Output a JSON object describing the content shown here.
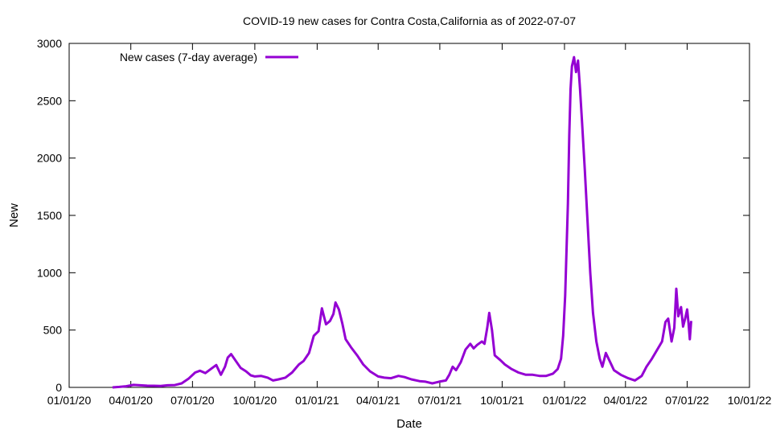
{
  "chart_data": {
    "type": "line",
    "title": "COVID-19 new cases for Contra Costa,California as of 2022-07-07",
    "xlabel": "Date",
    "ylabel": "New",
    "xlim": [
      "2020-01-01",
      "2022-10-01"
    ],
    "ylim": [
      0,
      3000
    ],
    "x_ticks": [
      "01/01/20",
      "04/01/20",
      "07/01/20",
      "10/01/20",
      "01/01/21",
      "04/01/21",
      "07/01/21",
      "10/01/21",
      "01/01/22",
      "04/01/22",
      "07/01/22",
      "10/01/22"
    ],
    "y_ticks": [
      "0",
      "500",
      "1000",
      "1500",
      "2000",
      "2500",
      "3000"
    ],
    "grid": false,
    "legend": {
      "position": "top-left"
    },
    "colors": {
      "series": "#9400d3"
    },
    "series": [
      {
        "name": "New cases (7-day average)",
        "points": [
          [
            "2020-03-05",
            0
          ],
          [
            "2020-03-15",
            4
          ],
          [
            "2020-03-25",
            10
          ],
          [
            "2020-04-05",
            22
          ],
          [
            "2020-04-15",
            18
          ],
          [
            "2020-04-25",
            15
          ],
          [
            "2020-05-05",
            14
          ],
          [
            "2020-05-15",
            12
          ],
          [
            "2020-05-25",
            18
          ],
          [
            "2020-06-05",
            20
          ],
          [
            "2020-06-15",
            35
          ],
          [
            "2020-06-25",
            75
          ],
          [
            "2020-07-05",
            130
          ],
          [
            "2020-07-12",
            145
          ],
          [
            "2020-07-20",
            125
          ],
          [
            "2020-07-28",
            160
          ],
          [
            "2020-08-05",
            195
          ],
          [
            "2020-08-12",
            110
          ],
          [
            "2020-08-18",
            180
          ],
          [
            "2020-08-22",
            260
          ],
          [
            "2020-08-27",
            290
          ],
          [
            "2020-09-03",
            230
          ],
          [
            "2020-09-10",
            170
          ],
          [
            "2020-09-18",
            140
          ],
          [
            "2020-09-25",
            105
          ],
          [
            "2020-10-01",
            95
          ],
          [
            "2020-10-10",
            100
          ],
          [
            "2020-10-20",
            85
          ],
          [
            "2020-10-28",
            60
          ],
          [
            "2020-11-05",
            70
          ],
          [
            "2020-11-15",
            85
          ],
          [
            "2020-11-25",
            130
          ],
          [
            "2020-12-05",
            200
          ],
          [
            "2020-12-12",
            230
          ],
          [
            "2020-12-20",
            300
          ],
          [
            "2020-12-27",
            450
          ],
          [
            "2021-01-03",
            490
          ],
          [
            "2021-01-08",
            690
          ],
          [
            "2021-01-11",
            620
          ],
          [
            "2021-01-14",
            550
          ],
          [
            "2021-01-20",
            580
          ],
          [
            "2021-01-25",
            640
          ],
          [
            "2021-01-28",
            740
          ],
          [
            "2021-02-02",
            680
          ],
          [
            "2021-02-07",
            560
          ],
          [
            "2021-02-12",
            420
          ],
          [
            "2021-02-20",
            350
          ],
          [
            "2021-03-01",
            280
          ],
          [
            "2021-03-10",
            200
          ],
          [
            "2021-03-20",
            140
          ],
          [
            "2021-04-01",
            95
          ],
          [
            "2021-04-10",
            85
          ],
          [
            "2021-04-20",
            80
          ],
          [
            "2021-05-01",
            100
          ],
          [
            "2021-05-10",
            90
          ],
          [
            "2021-05-20",
            70
          ],
          [
            "2021-06-01",
            55
          ],
          [
            "2021-06-10",
            50
          ],
          [
            "2021-06-20",
            35
          ],
          [
            "2021-06-30",
            50
          ],
          [
            "2021-07-10",
            60
          ],
          [
            "2021-07-15",
            110
          ],
          [
            "2021-07-20",
            180
          ],
          [
            "2021-07-25",
            150
          ],
          [
            "2021-08-01",
            220
          ],
          [
            "2021-08-08",
            330
          ],
          [
            "2021-08-15",
            380
          ],
          [
            "2021-08-20",
            340
          ],
          [
            "2021-08-25",
            370
          ],
          [
            "2021-09-01",
            400
          ],
          [
            "2021-09-05",
            380
          ],
          [
            "2021-09-09",
            520
          ],
          [
            "2021-09-12",
            650
          ],
          [
            "2021-09-16",
            500
          ],
          [
            "2021-09-20",
            280
          ],
          [
            "2021-09-28",
            240
          ],
          [
            "2021-10-05",
            200
          ],
          [
            "2021-10-15",
            160
          ],
          [
            "2021-10-25",
            130
          ],
          [
            "2021-11-05",
            110
          ],
          [
            "2021-11-15",
            110
          ],
          [
            "2021-11-25",
            100
          ],
          [
            "2021-12-05",
            100
          ],
          [
            "2021-12-15",
            120
          ],
          [
            "2021-12-22",
            160
          ],
          [
            "2021-12-27",
            250
          ],
          [
            "2021-12-30",
            450
          ],
          [
            "2022-01-02",
            800
          ],
          [
            "2022-01-04",
            1200
          ],
          [
            "2022-01-06",
            1600
          ],
          [
            "2022-01-08",
            2200
          ],
          [
            "2022-01-10",
            2600
          ],
          [
            "2022-01-12",
            2800
          ],
          [
            "2022-01-15",
            2880
          ],
          [
            "2022-01-18",
            2750
          ],
          [
            "2022-01-21",
            2850
          ],
          [
            "2022-01-24",
            2600
          ],
          [
            "2022-01-27",
            2300
          ],
          [
            "2022-01-31",
            1900
          ],
          [
            "2022-02-04",
            1450
          ],
          [
            "2022-02-08",
            1000
          ],
          [
            "2022-02-12",
            650
          ],
          [
            "2022-02-17",
            400
          ],
          [
            "2022-02-22",
            250
          ],
          [
            "2022-02-26",
            180
          ],
          [
            "2022-03-03",
            300
          ],
          [
            "2022-03-07",
            250
          ],
          [
            "2022-03-15",
            150
          ],
          [
            "2022-03-25",
            110
          ],
          [
            "2022-04-05",
            80
          ],
          [
            "2022-04-15",
            60
          ],
          [
            "2022-04-25",
            100
          ],
          [
            "2022-05-02",
            180
          ],
          [
            "2022-05-10",
            250
          ],
          [
            "2022-05-18",
            330
          ],
          [
            "2022-05-25",
            400
          ],
          [
            "2022-05-30",
            570
          ],
          [
            "2022-06-03",
            600
          ],
          [
            "2022-06-08",
            400
          ],
          [
            "2022-06-12",
            520
          ],
          [
            "2022-06-15",
            860
          ],
          [
            "2022-06-18",
            620
          ],
          [
            "2022-06-22",
            700
          ],
          [
            "2022-06-25",
            530
          ],
          [
            "2022-06-28",
            600
          ],
          [
            "2022-07-01",
            680
          ],
          [
            "2022-07-03",
            560
          ],
          [
            "2022-07-05",
            420
          ],
          [
            "2022-07-07",
            580
          ]
        ]
      }
    ]
  }
}
